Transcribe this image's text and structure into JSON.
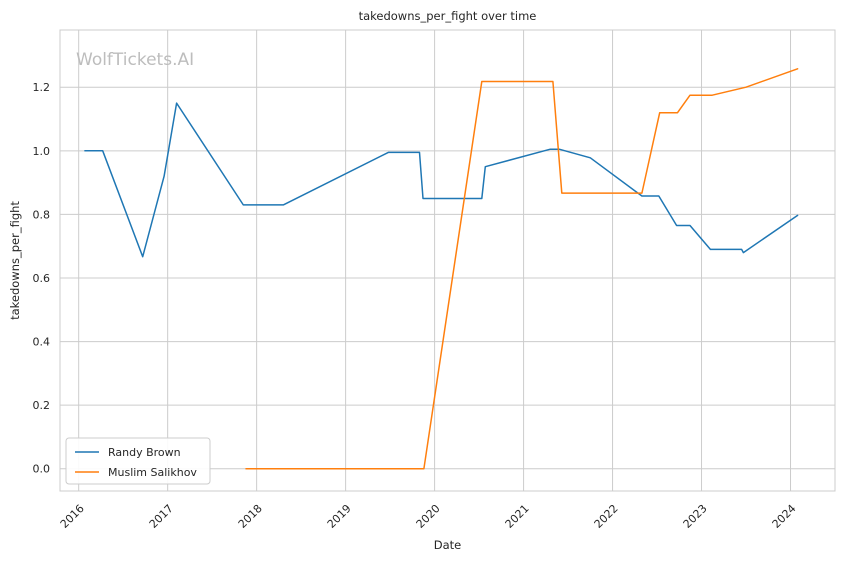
{
  "chart_data": {
    "type": "line",
    "title": "takedowns_per_fight over time",
    "xlabel": "Date",
    "ylabel": "takedowns_per_fight",
    "watermark": "WolfTickets.AI",
    "x_ticks": [
      "2016",
      "2017",
      "2018",
      "2019",
      "2020",
      "2021",
      "2022",
      "2023",
      "2024"
    ],
    "y_ticks": [
      "0.0",
      "0.2",
      "0.4",
      "0.6",
      "0.8",
      "1.0",
      "1.2"
    ],
    "xlim": [
      2015.79,
      2024.5
    ],
    "ylim": [
      -0.07,
      1.38
    ],
    "grid": true,
    "legend_position": "lower-left",
    "series": [
      {
        "name": "Randy Brown",
        "color": "#1f77b4",
        "x": [
          2016.07,
          2016.27,
          2016.72,
          2016.96,
          2017.1,
          2017.85,
          2018.3,
          2019.48,
          2019.83,
          2019.87,
          2020.53,
          2020.57,
          2021.3,
          2021.4,
          2021.75,
          2022.33,
          2022.52,
          2022.72,
          2022.87,
          2023.1,
          2023.45,
          2023.47,
          2024.08
        ],
        "values": [
          1.0,
          1.0,
          0.667,
          0.92,
          1.15,
          0.83,
          0.83,
          0.995,
          0.995,
          0.85,
          0.85,
          0.95,
          1.005,
          1.005,
          0.978,
          0.858,
          0.858,
          0.765,
          0.765,
          0.69,
          0.69,
          0.68,
          0.797
        ]
      },
      {
        "name": "Muslim Salikhov",
        "color": "#ff7f0e",
        "x": [
          2017.88,
          2019.88,
          2020.53,
          2021.33,
          2021.43,
          2022.33,
          2022.53,
          2022.73,
          2022.87,
          2023.12,
          2023.5,
          2024.08
        ],
        "values": [
          0.0,
          0.0,
          1.218,
          1.218,
          0.867,
          0.867,
          1.12,
          1.12,
          1.175,
          1.175,
          1.2,
          1.258
        ]
      }
    ]
  }
}
